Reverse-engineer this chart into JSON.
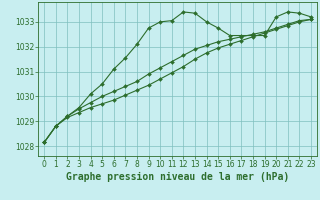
{
  "title": "Graphe pression niveau de la mer (hPa)",
  "bg_color": "#c8eef0",
  "line_color": "#2d6e2d",
  "grid_color": "#7fbfbf",
  "xlim": [
    -0.5,
    23.5
  ],
  "ylim": [
    1027.6,
    1033.8
  ],
  "yticks": [
    1028,
    1029,
    1030,
    1031,
    1032,
    1033
  ],
  "xticks": [
    0,
    1,
    2,
    3,
    4,
    5,
    6,
    7,
    8,
    9,
    10,
    11,
    12,
    13,
    14,
    15,
    16,
    17,
    18,
    19,
    20,
    21,
    22,
    23
  ],
  "series1_x": [
    0,
    1,
    2,
    3,
    4,
    5,
    6,
    7,
    8,
    9,
    10,
    11,
    12,
    13,
    14,
    15,
    16,
    17,
    18,
    19,
    20,
    21,
    22,
    23
  ],
  "series1_y": [
    1028.15,
    1028.8,
    1029.2,
    1029.55,
    1030.1,
    1030.5,
    1031.1,
    1031.55,
    1032.1,
    1032.75,
    1033.0,
    1033.05,
    1033.4,
    1033.35,
    1033.0,
    1032.75,
    1032.45,
    1032.45,
    1032.45,
    1032.45,
    1033.2,
    1033.4,
    1033.35,
    1033.2
  ],
  "series2_x": [
    0,
    1,
    2,
    3,
    4,
    5,
    6,
    7,
    8,
    9,
    10,
    11,
    12,
    13,
    14,
    15,
    16,
    17,
    18,
    19,
    20,
    21,
    22,
    23
  ],
  "series2_y": [
    1028.15,
    1028.8,
    1029.15,
    1029.35,
    1029.55,
    1029.7,
    1029.85,
    1030.05,
    1030.25,
    1030.45,
    1030.7,
    1030.95,
    1031.2,
    1031.5,
    1031.75,
    1031.95,
    1032.1,
    1032.25,
    1032.4,
    1032.55,
    1032.7,
    1032.85,
    1033.0,
    1033.1
  ],
  "series3_x": [
    0,
    1,
    2,
    3,
    4,
    5,
    6,
    7,
    8,
    9,
    10,
    11,
    12,
    13,
    14,
    15,
    16,
    17,
    18,
    19,
    20,
    21,
    22,
    23
  ],
  "series3_y": [
    1028.15,
    1028.8,
    1029.2,
    1029.5,
    1029.75,
    1030.0,
    1030.2,
    1030.4,
    1030.6,
    1030.9,
    1031.15,
    1031.4,
    1031.65,
    1031.9,
    1032.05,
    1032.2,
    1032.3,
    1032.4,
    1032.5,
    1032.6,
    1032.75,
    1032.9,
    1033.05,
    1033.1
  ],
  "marker": "D",
  "markersize": 2.0,
  "linewidth": 0.8,
  "title_fontsize": 7,
  "tick_fontsize": 5.5
}
